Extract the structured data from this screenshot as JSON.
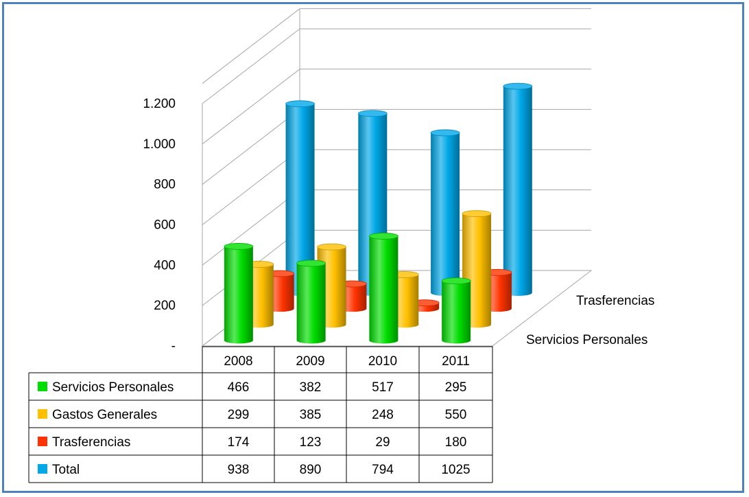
{
  "chart_data": {
    "type": "bar",
    "subtype": "3d-column-with-data-table",
    "categories": [
      "2008",
      "2009",
      "2010",
      "2011"
    ],
    "series": [
      {
        "name": "Servicios Personales",
        "color": "#00dd00",
        "values": [
          466,
          382,
          517,
          295
        ]
      },
      {
        "name": "Gastos Generales",
        "color": "#ffc000",
        "values": [
          299,
          385,
          248,
          550
        ]
      },
      {
        "name": "Trasferencias",
        "color": "#ff3300",
        "values": [
          174,
          123,
          29,
          180
        ]
      },
      {
        "name": "Total",
        "color": "#00a8e8",
        "values": [
          938,
          890,
          794,
          1025
        ]
      }
    ],
    "depth_axis_labels": [
      "Trasferencias",
      "Servicios Personales"
    ],
    "yticks": [
      "-",
      "200",
      "400",
      "600",
      "800",
      "1.000",
      "1.200"
    ],
    "ylim": [
      0,
      1200
    ],
    "grid": true,
    "table": {
      "cells": [
        [
          "466",
          "382",
          "517",
          "295"
        ],
        [
          "299",
          "385",
          "248",
          "550"
        ],
        [
          "174",
          "123",
          "29",
          "180"
        ],
        [
          "938",
          "890",
          "794",
          "1025"
        ]
      ]
    }
  }
}
